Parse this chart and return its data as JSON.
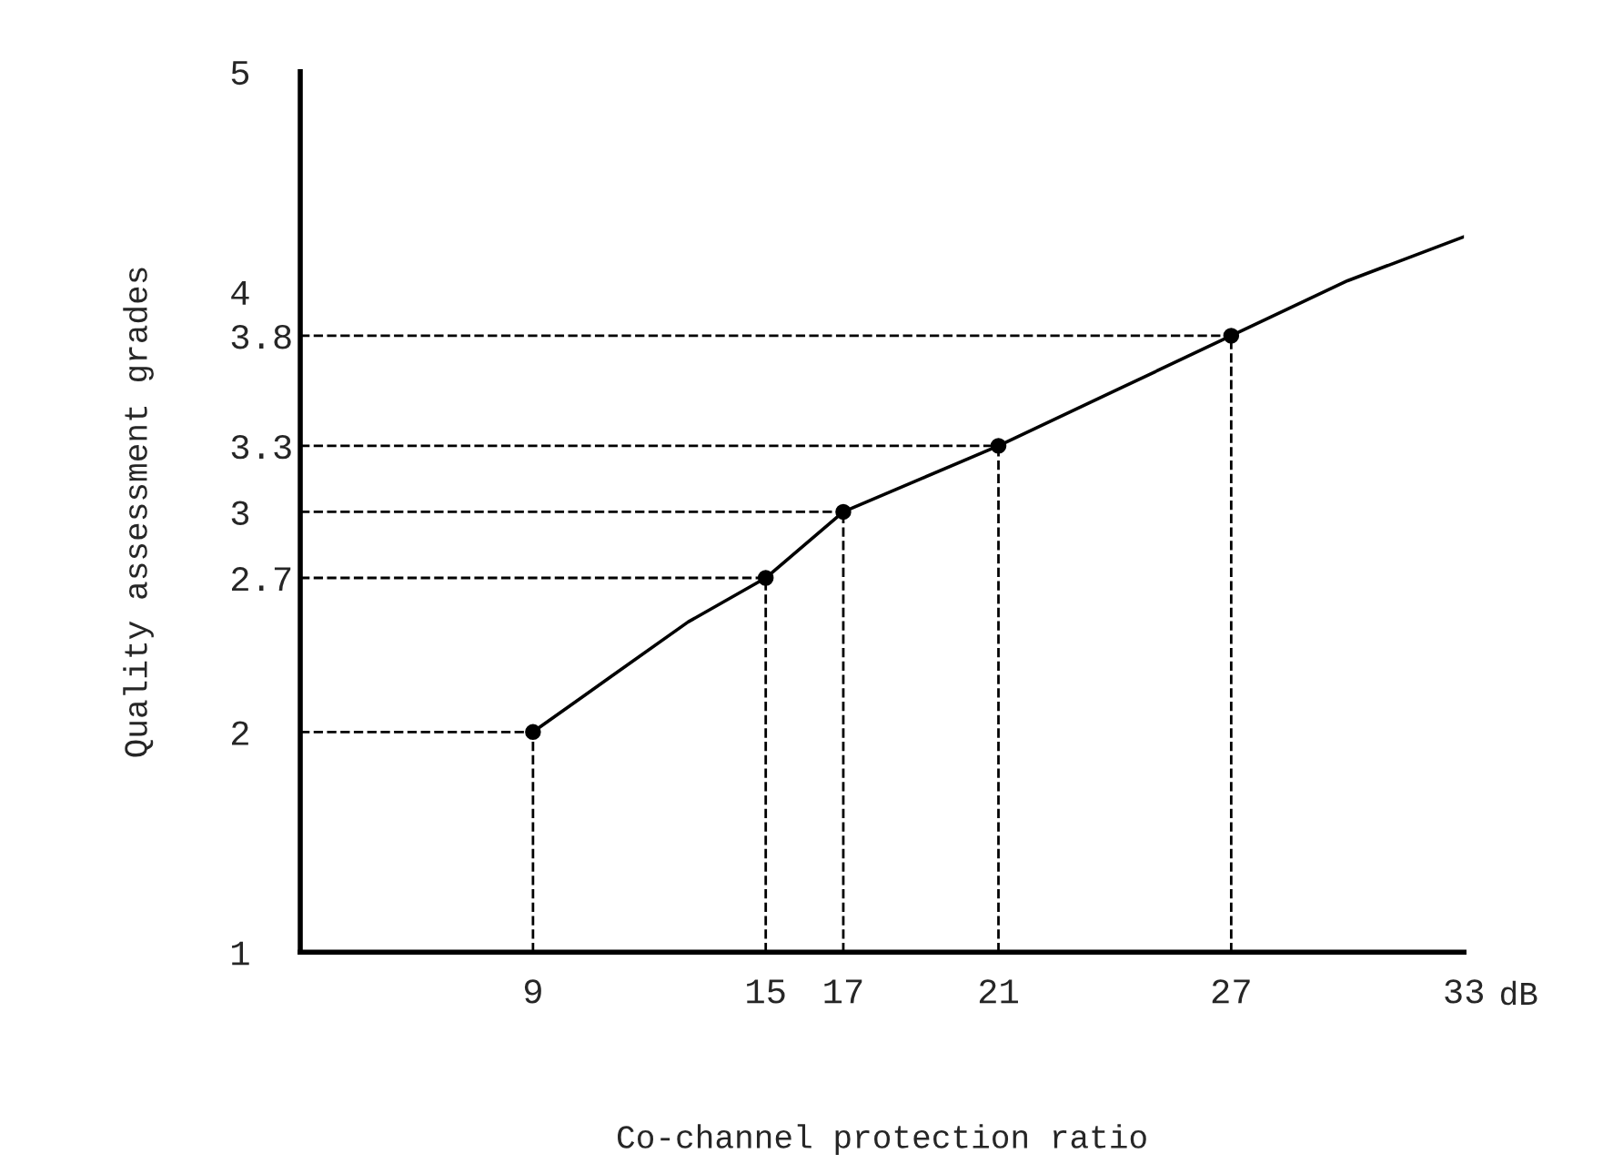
{
  "chart_data": {
    "type": "line",
    "xlabel": "Co-channel protection ratio",
    "ylabel": "Quality assessment grades",
    "annotations": [
      "dB"
    ],
    "series": [
      {
        "color": "#000000",
        "marker": "none",
        "line_style": "solid",
        "x": [
          9,
          11,
          13,
          15,
          17,
          19,
          21,
          24,
          27,
          30,
          33
        ],
        "values": [
          2,
          2.25,
          2.5,
          2.7,
          3,
          3.15,
          3.3,
          3.55,
          3.8,
          4.05,
          4.25
        ]
      },
      {
        "type": "scatter",
        "color": "#000000",
        "marker": "circle",
        "x": [
          9,
          15,
          17,
          21,
          27
        ],
        "values": [
          2,
          2.7,
          3,
          3.3,
          3.8
        ]
      }
    ],
    "ref_lines": [
      {
        "axis": "x",
        "value": 9,
        "line_style": "dashed",
        "color": "#000000"
      },
      {
        "axis": "x",
        "value": 15,
        "line_style": "dashed",
        "color": "#000000"
      },
      {
        "axis": "x",
        "value": 17,
        "line_style": "dashed",
        "color": "#000000"
      },
      {
        "axis": "x",
        "value": 21,
        "line_style": "dashed",
        "color": "#000000"
      },
      {
        "axis": "x",
        "value": 27,
        "line_style": "dashed",
        "color": "#000000"
      },
      {
        "axis": "y",
        "value": 2,
        "line_style": "dashed",
        "color": "#000000"
      },
      {
        "axis": "y",
        "value": 2.7,
        "line_style": "dashed",
        "color": "#000000"
      },
      {
        "axis": "y",
        "value": 3,
        "line_style": "dashed",
        "color": "#000000"
      },
      {
        "axis": "y",
        "value": 3.3,
        "line_style": "dashed",
        "color": "#000000"
      },
      {
        "axis": "y",
        "value": 3.8,
        "line_style": "dashed",
        "color": "#000000"
      }
    ],
    "xlim": [
      3,
      33
    ],
    "xticks": [
      9,
      15,
      17,
      21,
      27,
      33
    ],
    "ylim": [
      1,
      5
    ],
    "yticks": [
      1,
      2,
      2.7,
      3,
      3.3,
      3.8,
      4,
      5
    ],
    "grid": false,
    "legend": false
  }
}
